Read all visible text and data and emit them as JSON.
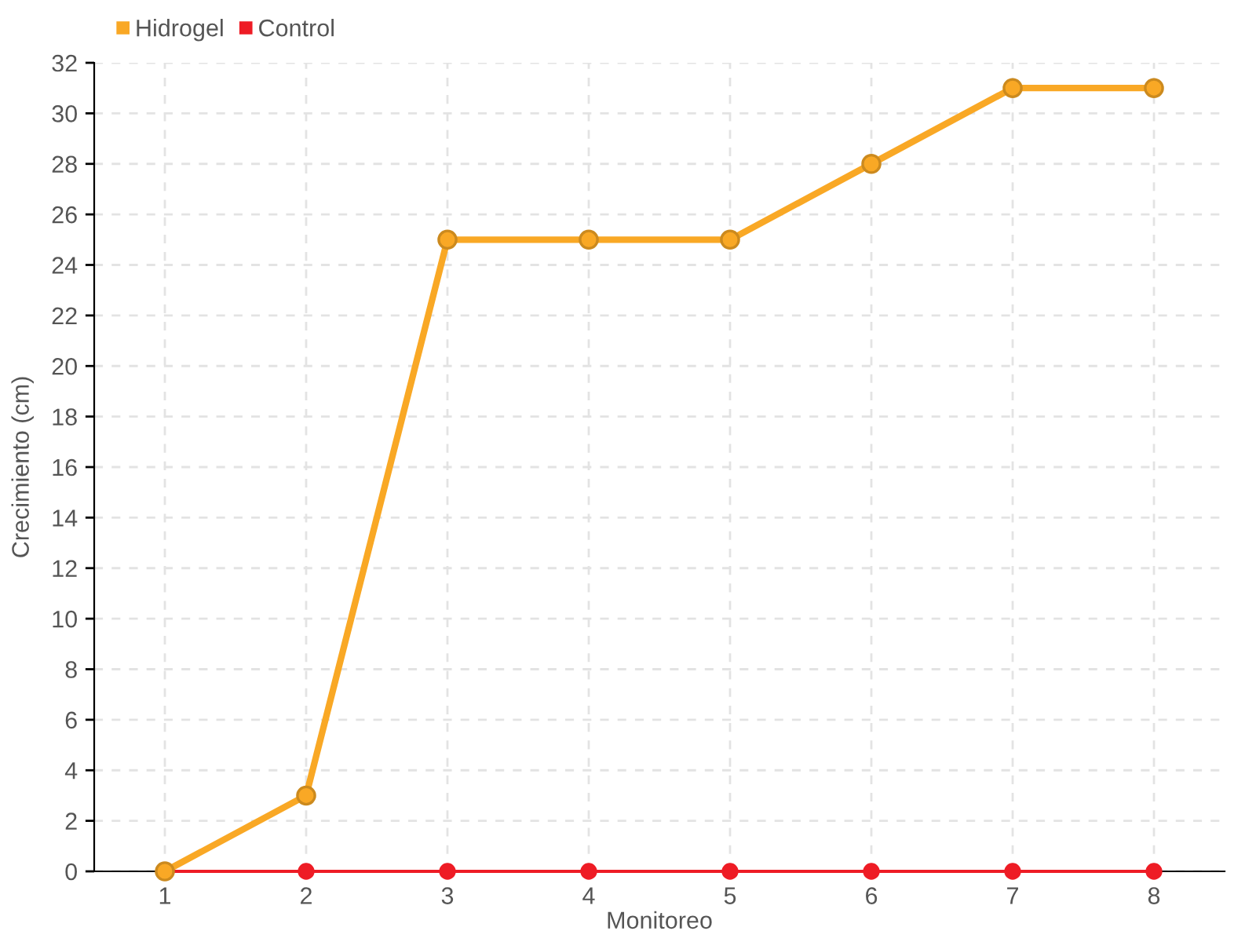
{
  "chart_data": {
    "type": "line",
    "xlabel": "Monitoreo",
    "ylabel": "Crecimiento (cm)",
    "categories": [
      "1",
      "2",
      "3",
      "4",
      "5",
      "6",
      "7",
      "8"
    ],
    "series": [
      {
        "name": "Hidrogel",
        "color": "#f9a825",
        "values": [
          0,
          3,
          25,
          25,
          25,
          28,
          31,
          31
        ]
      },
      {
        "name": "Control",
        "color": "#ee1c25",
        "values": [
          0,
          0,
          0,
          0,
          0,
          0,
          0,
          0
        ]
      }
    ],
    "ylim": [
      0,
      32
    ],
    "yticks": [
      0,
      2,
      4,
      6,
      8,
      10,
      12,
      14,
      16,
      18,
      20,
      22,
      24,
      26,
      28,
      30,
      32
    ],
    "grid": true,
    "legend": "top left",
    "marker": "circle",
    "line_style": "solid"
  }
}
